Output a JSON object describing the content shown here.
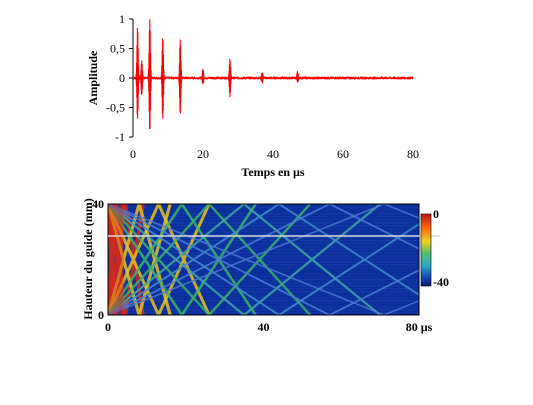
{
  "chart_data": [
    {
      "type": "line",
      "xlabel": "Temps en µs",
      "ylabel": "Amplitude",
      "xlim": [
        0,
        80
      ],
      "ylim": [
        -1,
        1
      ],
      "xticks": [
        0,
        20,
        40,
        60,
        80
      ],
      "xtick_labels": [
        "0",
        "20",
        "40",
        "60",
        "80"
      ],
      "yticks": [
        1,
        0.5,
        0,
        -0.5,
        -1
      ],
      "ytick_labels": [
        "1",
        "0,5",
        "0",
        "-0,5",
        "-1"
      ],
      "series_color": "#ff0000",
      "grid": false,
      "pulses": [
        {
          "t": 1.3,
          "max": 0.85,
          "min": -0.7
        },
        {
          "t": 2.5,
          "max": 0.3,
          "min": -0.3
        },
        {
          "t": 4.8,
          "max": 1.0,
          "min": -0.9
        },
        {
          "t": 8.5,
          "max": 0.7,
          "min": -0.7
        },
        {
          "t": 13.5,
          "max": 0.65,
          "min": -0.6
        },
        {
          "t": 20.0,
          "max": 0.15,
          "min": -0.1
        },
        {
          "t": 27.7,
          "max": 0.32,
          "min": -0.3
        },
        {
          "t": 36.9,
          "max": 0.1,
          "min": -0.08
        },
        {
          "t": 47.0,
          "max": 0.1,
          "min": -0.08
        }
      ]
    },
    {
      "type": "heatmap",
      "ylabel": "Hauteur du guide (mm)",
      "xlim": [
        0,
        80
      ],
      "ylim": [
        0,
        40
      ],
      "xticks": [
        0,
        40,
        80
      ],
      "xtick_labels": [
        "0",
        "40",
        "80 µs"
      ],
      "yticks": [
        0,
        40
      ],
      "ytick_labels": [
        "0",
        "40"
      ],
      "colorbar": {
        "range": [
          -40,
          0
        ],
        "tick_labels": [
          "0",
          "-40"
        ]
      },
      "colors": {
        "background": "#0a2e9c",
        "high": "#d42a1a",
        "mid": "#e8c21e",
        "low": "#39b36a"
      },
      "reflection_paths_end_times": [
        2,
        4.5,
        8,
        13,
        19,
        26,
        35,
        44,
        57,
        71
      ]
    }
  ]
}
